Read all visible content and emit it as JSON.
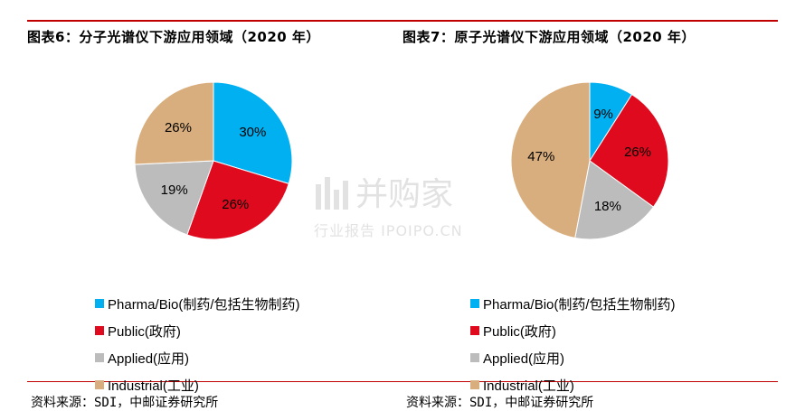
{
  "charts": [
    {
      "title": "图表6：分子光谱仪下游应用领域（2020 年）",
      "source": "资料来源：SDI，中邮证券研究所"
    },
    {
      "title": "图表7：原子光谱仪下游应用领域（2020 年）",
      "source": "资料来源：SDI，中邮证券研究所"
    }
  ],
  "chart_data": [
    {
      "type": "pie",
      "title": "图表6：分子光谱仪下游应用领域（2020 年）",
      "categories": [
        "Pharma/Bio(制药/包括生物制药)",
        "Public(政府)",
        "Applied(应用)",
        "Industrial(工业)"
      ],
      "values": [
        30,
        26,
        19,
        26
      ],
      "labels": [
        "30%",
        "26%",
        "19%",
        "26%"
      ],
      "colors": [
        "#00b0f0",
        "#e00a1f",
        "#bcbcbc",
        "#d9ae7e"
      ],
      "legend_position": "bottom"
    },
    {
      "type": "pie",
      "title": "图表7：原子光谱仪下游应用领域（2020 年）",
      "categories": [
        "Pharma/Bio(制药/包括生物制药)",
        "Public(政府)",
        "Applied(应用)",
        "Industrial(工业)"
      ],
      "values": [
        9,
        26,
        18,
        47
      ],
      "labels": [
        "9%",
        "26%",
        "18%",
        "47%"
      ],
      "colors": [
        "#00b0f0",
        "#e00a1f",
        "#bcbcbc",
        "#d9ae7e"
      ],
      "legend_position": "bottom"
    }
  ],
  "watermark": {
    "main": "并购家",
    "sub": "行业报告 IPOIPO.CN"
  }
}
